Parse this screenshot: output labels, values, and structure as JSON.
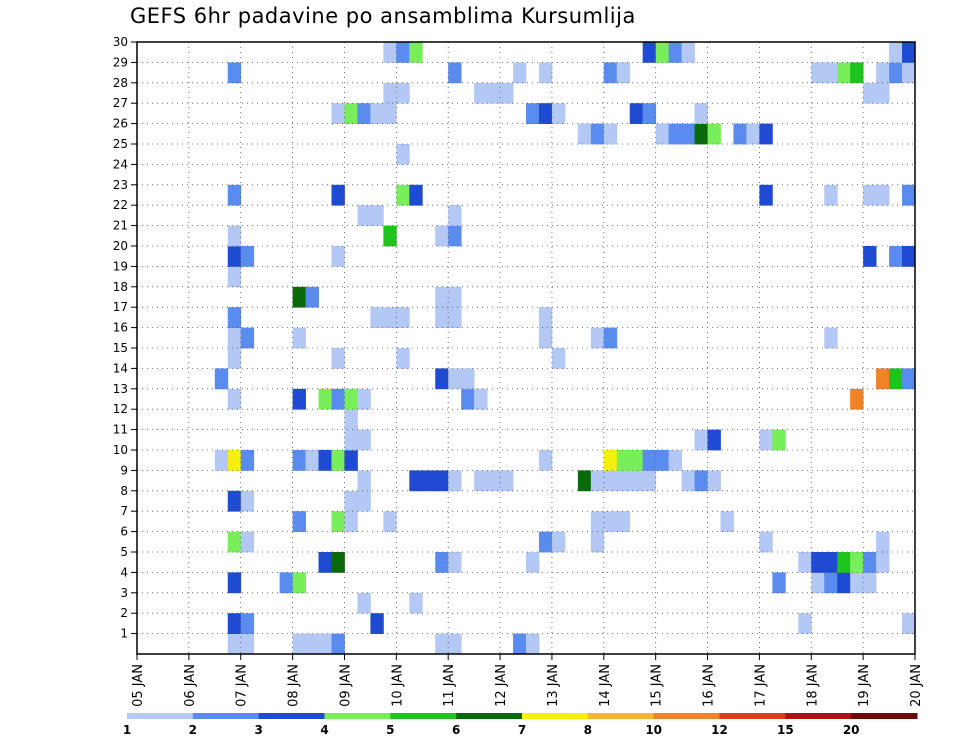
{
  "chart_data": {
    "type": "heatmap",
    "title": "GEFS 6hr padavine po ansamblima Kursumlija",
    "x_ticks": [
      "05 JAN",
      "06 JAN",
      "07 JAN",
      "08 JAN",
      "09 JAN",
      "10 JAN",
      "11 JAN",
      "12 JAN",
      "13 JAN",
      "14 JAN",
      "15 JAN",
      "16 JAN",
      "17 JAN",
      "18 JAN",
      "19 JAN",
      "20 JAN"
    ],
    "x_range_days": [
      5,
      20
    ],
    "y_ticks": [
      1,
      2,
      3,
      4,
      5,
      6,
      7,
      8,
      9,
      10,
      11,
      12,
      13,
      14,
      15,
      16,
      17,
      18,
      19,
      20,
      21,
      22,
      23,
      24,
      25,
      26,
      27,
      28,
      29,
      30
    ],
    "y_range": [
      0,
      30
    ],
    "grid": true,
    "colorbar": {
      "labels": [
        "1",
        "2",
        "3",
        "4",
        "5",
        "6",
        "7",
        "8",
        "10",
        "12",
        "15",
        "20"
      ],
      "colors": [
        "#b4c8f5",
        "#5a8cf0",
        "#1e4bd2",
        "#78ef5a",
        "#1ec41e",
        "#0a690a",
        "#f5f00a",
        "#f5b432",
        "#f08228",
        "#dc3c1e",
        "#aa1414",
        "#6e0a0a"
      ]
    },
    "levels": [
      1,
      2,
      3,
      4,
      5,
      6,
      7,
      8,
      10,
      12,
      15,
      20
    ],
    "cell_days": 0.25,
    "rows": [
      {
        "m": 1,
        "c": [
          [
            6.75,
            1
          ],
          [
            7,
            1
          ],
          [
            8,
            1
          ],
          [
            8.25,
            1
          ],
          [
            8.5,
            1
          ],
          [
            8.75,
            2
          ],
          [
            10.75,
            1
          ],
          [
            11,
            1
          ],
          [
            12.25,
            2
          ],
          [
            12.5,
            1
          ]
        ]
      },
      {
        "m": 2,
        "c": [
          [
            6.75,
            3
          ],
          [
            7,
            2
          ],
          [
            9.5,
            3
          ],
          [
            17.75,
            1
          ],
          [
            19.75,
            1
          ]
        ]
      },
      {
        "m": 3,
        "c": [
          [
            9.25,
            1
          ],
          [
            10.25,
            1
          ]
        ]
      },
      {
        "m": 4,
        "c": [
          [
            6.75,
            3
          ],
          [
            7.75,
            2
          ],
          [
            8,
            4
          ],
          [
            17.25,
            2
          ],
          [
            18,
            1
          ],
          [
            18.25,
            2
          ],
          [
            18.5,
            3
          ],
          [
            18.75,
            1
          ],
          [
            19,
            1
          ]
        ]
      },
      {
        "m": 5,
        "c": [
          [
            8.5,
            3
          ],
          [
            8.75,
            6
          ],
          [
            10.75,
            2
          ],
          [
            11,
            1
          ],
          [
            12.5,
            1
          ],
          [
            17.75,
            1
          ],
          [
            18,
            3
          ],
          [
            18.25,
            3
          ],
          [
            18.5,
            5
          ],
          [
            18.75,
            4
          ],
          [
            19,
            2
          ],
          [
            19.25,
            1
          ]
        ]
      },
      {
        "m": 6,
        "c": [
          [
            6.75,
            4
          ],
          [
            7,
            1
          ],
          [
            12.75,
            2
          ],
          [
            13,
            1
          ],
          [
            13.75,
            1
          ],
          [
            17,
            1
          ],
          [
            19.25,
            1
          ]
        ]
      },
      {
        "m": 7,
        "c": [
          [
            8,
            2
          ],
          [
            8.75,
            4
          ],
          [
            9,
            1
          ],
          [
            9.75,
            1
          ],
          [
            13.75,
            1
          ],
          [
            14,
            1
          ],
          [
            14.25,
            1
          ],
          [
            16.25,
            1
          ]
        ]
      },
      {
        "m": 8,
        "c": [
          [
            6.75,
            3
          ],
          [
            7,
            1
          ],
          [
            9,
            1
          ],
          [
            9.25,
            1
          ]
        ]
      },
      {
        "m": 9,
        "c": [
          [
            9.25,
            1
          ],
          [
            10.25,
            3
          ],
          [
            10.5,
            3
          ],
          [
            10.75,
            3
          ],
          [
            11,
            1
          ],
          [
            11.5,
            1
          ],
          [
            11.75,
            1
          ],
          [
            12,
            1
          ],
          [
            13.5,
            6
          ],
          [
            13.75,
            1
          ],
          [
            14,
            1
          ],
          [
            14.25,
            1
          ],
          [
            14.5,
            1
          ],
          [
            14.75,
            1
          ],
          [
            15.5,
            1
          ],
          [
            15.75,
            2
          ],
          [
            16,
            1
          ]
        ]
      },
      {
        "m": 10,
        "c": [
          [
            6.5,
            1
          ],
          [
            6.75,
            7
          ],
          [
            7,
            2
          ],
          [
            8,
            2
          ],
          [
            8.25,
            1
          ],
          [
            8.5,
            3
          ],
          [
            8.75,
            4
          ],
          [
            9,
            3
          ],
          [
            12.75,
            1
          ],
          [
            14,
            7
          ],
          [
            14.25,
            4
          ],
          [
            14.5,
            4
          ],
          [
            14.75,
            2
          ],
          [
            15,
            2
          ],
          [
            15.25,
            1
          ]
        ]
      },
      {
        "m": 11,
        "c": [
          [
            9,
            1
          ],
          [
            9.25,
            1
          ],
          [
            15.75,
            1
          ],
          [
            16,
            3
          ],
          [
            17,
            1
          ],
          [
            17.25,
            4
          ]
        ]
      },
      {
        "m": 12,
        "c": [
          [
            9,
            1
          ]
        ]
      },
      {
        "m": 13,
        "c": [
          [
            6.75,
            1
          ],
          [
            8,
            3
          ],
          [
            8.5,
            4
          ],
          [
            8.75,
            2
          ],
          [
            9,
            4
          ],
          [
            9.25,
            1
          ],
          [
            11.25,
            2
          ],
          [
            11.5,
            1
          ],
          [
            18.75,
            9
          ]
        ]
      },
      {
        "m": 14,
        "c": [
          [
            6.5,
            2
          ],
          [
            10.75,
            3
          ],
          [
            11,
            1
          ],
          [
            11.25,
            1
          ],
          [
            19.25,
            9
          ],
          [
            19.5,
            5
          ],
          [
            19.75,
            2
          ]
        ]
      },
      {
        "m": 15,
        "c": [
          [
            6.75,
            1
          ],
          [
            8.75,
            1
          ],
          [
            10,
            1
          ],
          [
            13,
            1
          ]
        ]
      },
      {
        "m": 16,
        "c": [
          [
            6.75,
            1
          ],
          [
            7,
            2
          ],
          [
            8,
            1
          ],
          [
            12.75,
            1
          ],
          [
            13.75,
            1
          ],
          [
            14,
            2
          ],
          [
            18.25,
            1
          ]
        ]
      },
      {
        "m": 17,
        "c": [
          [
            6.75,
            2
          ],
          [
            9.5,
            1
          ],
          [
            9.75,
            1
          ],
          [
            10,
            1
          ],
          [
            10.75,
            1
          ],
          [
            11,
            1
          ],
          [
            12.75,
            1
          ]
        ]
      },
      {
        "m": 18,
        "c": [
          [
            8,
            6
          ],
          [
            8.25,
            2
          ],
          [
            10.75,
            1
          ],
          [
            11,
            1
          ]
        ]
      },
      {
        "m": 19,
        "c": [
          [
            6.75,
            1
          ]
        ]
      },
      {
        "m": 20,
        "c": [
          [
            6.75,
            3
          ],
          [
            7,
            2
          ],
          [
            8.75,
            1
          ],
          [
            19,
            3
          ],
          [
            19.5,
            2
          ],
          [
            19.75,
            3
          ]
        ]
      },
      {
        "m": 21,
        "c": [
          [
            6.75,
            1
          ],
          [
            9.75,
            5
          ],
          [
            10.75,
            1
          ],
          [
            11,
            2
          ]
        ]
      },
      {
        "m": 22,
        "c": [
          [
            9.25,
            1
          ],
          [
            9.5,
            1
          ],
          [
            11,
            1
          ]
        ]
      },
      {
        "m": 23,
        "c": [
          [
            6.75,
            2
          ],
          [
            8.75,
            3
          ],
          [
            10,
            4
          ],
          [
            10.25,
            3
          ],
          [
            17,
            3
          ],
          [
            18.25,
            1
          ],
          [
            19,
            1
          ],
          [
            19.25,
            1
          ],
          [
            19.75,
            2
          ]
        ]
      },
      {
        "m": 24,
        "c": []
      },
      {
        "m": 25,
        "c": [
          [
            10,
            1
          ]
        ]
      },
      {
        "m": 26,
        "c": [
          [
            13.5,
            1
          ],
          [
            13.75,
            2
          ],
          [
            14,
            1
          ],
          [
            15,
            1
          ],
          [
            15.25,
            2
          ],
          [
            15.5,
            2
          ],
          [
            15.75,
            6
          ],
          [
            16,
            4
          ],
          [
            16.5,
            2
          ],
          [
            16.75,
            1
          ],
          [
            17,
            3
          ]
        ]
      },
      {
        "m": 27,
        "c": [
          [
            8.75,
            1
          ],
          [
            9,
            4
          ],
          [
            9.25,
            2
          ],
          [
            9.5,
            1
          ],
          [
            9.75,
            1
          ],
          [
            12.5,
            2
          ],
          [
            12.75,
            3
          ],
          [
            13,
            1
          ],
          [
            14.5,
            3
          ],
          [
            14.75,
            2
          ],
          [
            15.75,
            1
          ]
        ]
      },
      {
        "m": 28,
        "c": [
          [
            9.75,
            1
          ],
          [
            10,
            1
          ],
          [
            11.5,
            1
          ],
          [
            11.75,
            1
          ],
          [
            12,
            1
          ],
          [
            19,
            1
          ],
          [
            19.25,
            1
          ]
        ]
      },
      {
        "m": 29,
        "c": [
          [
            6.75,
            2
          ],
          [
            11,
            2
          ],
          [
            12.25,
            1
          ],
          [
            12.75,
            1
          ],
          [
            14,
            2
          ],
          [
            14.25,
            1
          ],
          [
            18,
            1
          ],
          [
            18.25,
            1
          ],
          [
            18.5,
            4
          ],
          [
            18.75,
            5
          ],
          [
            19.25,
            1
          ],
          [
            19.5,
            2
          ],
          [
            19.75,
            1
          ]
        ]
      },
      {
        "m": 30,
        "c": [
          [
            9.75,
            1
          ],
          [
            10,
            2
          ],
          [
            10.25,
            4
          ],
          [
            14.75,
            3
          ],
          [
            15,
            4
          ],
          [
            15.25,
            2
          ],
          [
            15.5,
            1
          ],
          [
            19.5,
            1
          ],
          [
            19.75,
            3
          ]
        ]
      }
    ]
  }
}
